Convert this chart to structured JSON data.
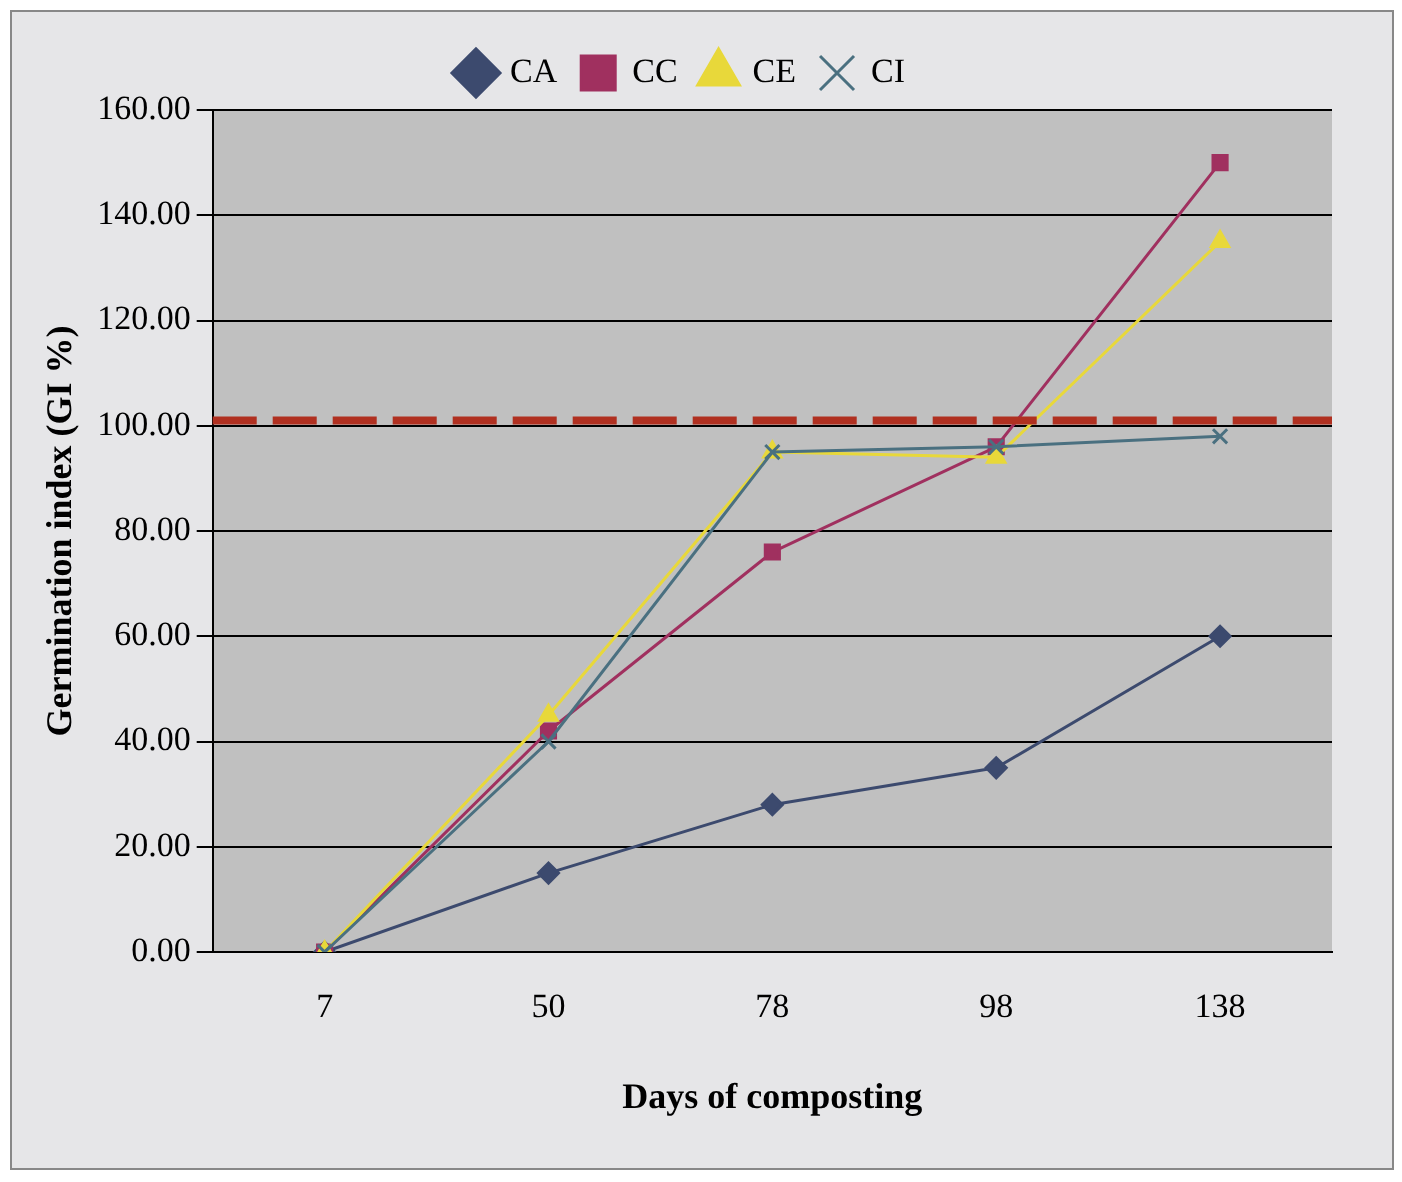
{
  "chart_data": {
    "type": "line",
    "xlabel": "Days of composting",
    "ylabel": "Germination index (GI %)",
    "categories": [
      "7",
      "50",
      "78",
      "98",
      "138"
    ],
    "series": [
      {
        "name": "CA",
        "color": "#3c4a6e",
        "marker": "diamond",
        "values": [
          0,
          15,
          28,
          35,
          60
        ]
      },
      {
        "name": "CC",
        "color": "#a0305f",
        "marker": "square",
        "values": [
          0,
          42,
          76,
          96,
          150
        ]
      },
      {
        "name": "CE",
        "color": "#e8d83a",
        "marker": "triangle",
        "values": [
          0,
          45,
          95,
          94,
          135
        ]
      },
      {
        "name": "CI",
        "color": "#4a7080",
        "marker": "cross",
        "values": [
          0,
          40,
          95,
          96,
          98
        ]
      }
    ],
    "ylim": [
      0,
      160
    ],
    "yticks": [
      {
        "value": 0,
        "label": "0.00"
      },
      {
        "value": 20,
        "label": "20.00"
      },
      {
        "value": 40,
        "label": "40.00"
      },
      {
        "value": 60,
        "label": "60.00"
      },
      {
        "value": 80,
        "label": "80.00"
      },
      {
        "value": 100,
        "label": "100.00"
      },
      {
        "value": 120,
        "label": "120.00"
      },
      {
        "value": 140,
        "label": "140.00"
      },
      {
        "value": 160,
        "label": "160.00"
      }
    ],
    "ref_lines": [
      {
        "axis": "y",
        "value": 101,
        "color": "#b03020",
        "line_style": "dashed"
      }
    ],
    "grid": "y",
    "legend": "top",
    "line_style": "solid"
  }
}
